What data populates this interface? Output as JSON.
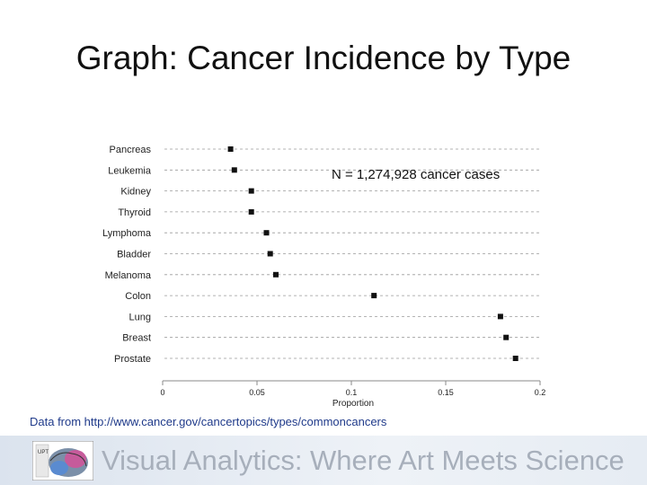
{
  "slide": {
    "title": "Graph: Cancer Incidence by Type",
    "source_note": "Data from http://www.cancer.gov/cancertopics/types/commoncancers",
    "footer_text": "Visual Analytics: Where Art Meets Science",
    "logo_text": "UPT"
  },
  "chart_data": {
    "type": "scatter",
    "categories": [
      "Pancreas",
      "Leukemia",
      "Kidney",
      "Thyroid",
      "Lymphoma",
      "Bladder",
      "Melanoma",
      "Colon",
      "Lung",
      "Breast",
      "Prostate"
    ],
    "values": [
      0.036,
      0.038,
      0.047,
      0.047,
      0.055,
      0.057,
      0.06,
      0.112,
      0.179,
      0.182,
      0.187
    ],
    "xlabel": "Proportion",
    "xlim": [
      0,
      0.2
    ],
    "xticks": [
      0,
      0.05,
      0.1,
      0.15,
      0.2
    ],
    "xtick_labels": [
      "0",
      "0.05",
      "0.1",
      "0.15",
      "0.2"
    ],
    "annotation": "N = 1,274,928 cancer cases",
    "colors": {
      "marker": "#111111",
      "leader": "#9a9a9a",
      "axis": "#8a8a8a"
    }
  }
}
